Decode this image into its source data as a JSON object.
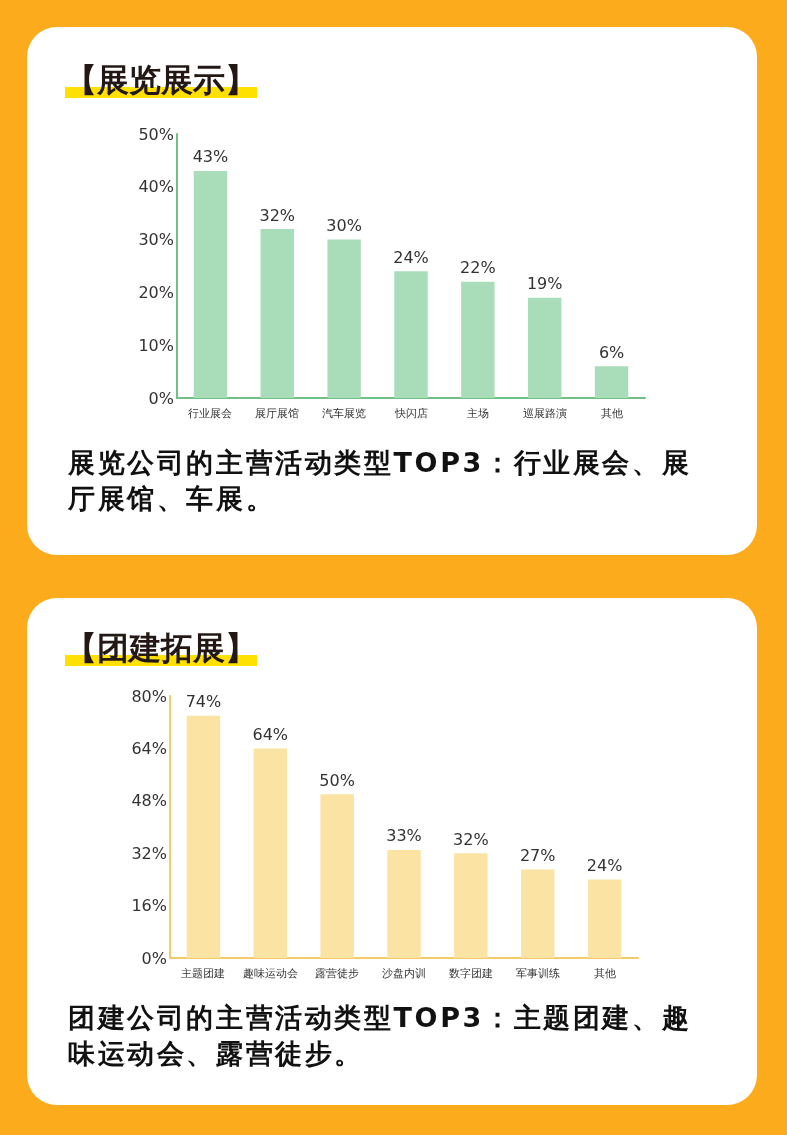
{
  "chart_data": [
    {
      "type": "bar",
      "title": "【展览展示】",
      "annotations": [
        "展览公司的主营活动类型TOP3：行业展会、展厅展馆、车展。"
      ],
      "categories": [
        "行业展会",
        "展厅展馆",
        "汽车展览",
        "快闪店",
        "主场",
        "巡展路演",
        "其他"
      ],
      "values": [
        43,
        32,
        30,
        24,
        22,
        19,
        6
      ],
      "value_labels": [
        "43%",
        "32%",
        "30%",
        "24%",
        "22%",
        "19%",
        "6%"
      ],
      "color": "#a9ddb9",
      "ylim": [
        0,
        50
      ],
      "yticks": [
        {
          "value": 0,
          "label": "0%"
        },
        {
          "value": 10,
          "label": "10%"
        },
        {
          "value": 20,
          "label": "20%"
        },
        {
          "value": 30,
          "label": "30%"
        },
        {
          "value": 40,
          "label": "40%"
        },
        {
          "value": 50,
          "label": "50%"
        }
      ]
    },
    {
      "type": "bar",
      "title": "【团建拓展】",
      "annotations": [
        "团建公司的主营活动类型TOP3：主题团建、趣味运动会、露营徒步。"
      ],
      "categories": [
        "主题团建",
        "趣味运动会",
        "露营徒步",
        "沙盘内训",
        "数字团建",
        "军事训练",
        "其他"
      ],
      "values": [
        74,
        64,
        50,
        33,
        32,
        27,
        24
      ],
      "value_labels": [
        "74%",
        "64%",
        "50%",
        "33%",
        "32%",
        "27%",
        "24%"
      ],
      "color": "#fae3a3",
      "ylim": [
        0,
        80
      ],
      "yticks": [
        {
          "value": 0,
          "label": "0%"
        },
        {
          "value": 16,
          "label": "16%"
        },
        {
          "value": 32,
          "label": "32%"
        },
        {
          "value": 48,
          "label": "48%"
        },
        {
          "value": 64,
          "label": "64%"
        },
        {
          "value": 80,
          "label": "80%"
        }
      ]
    }
  ]
}
